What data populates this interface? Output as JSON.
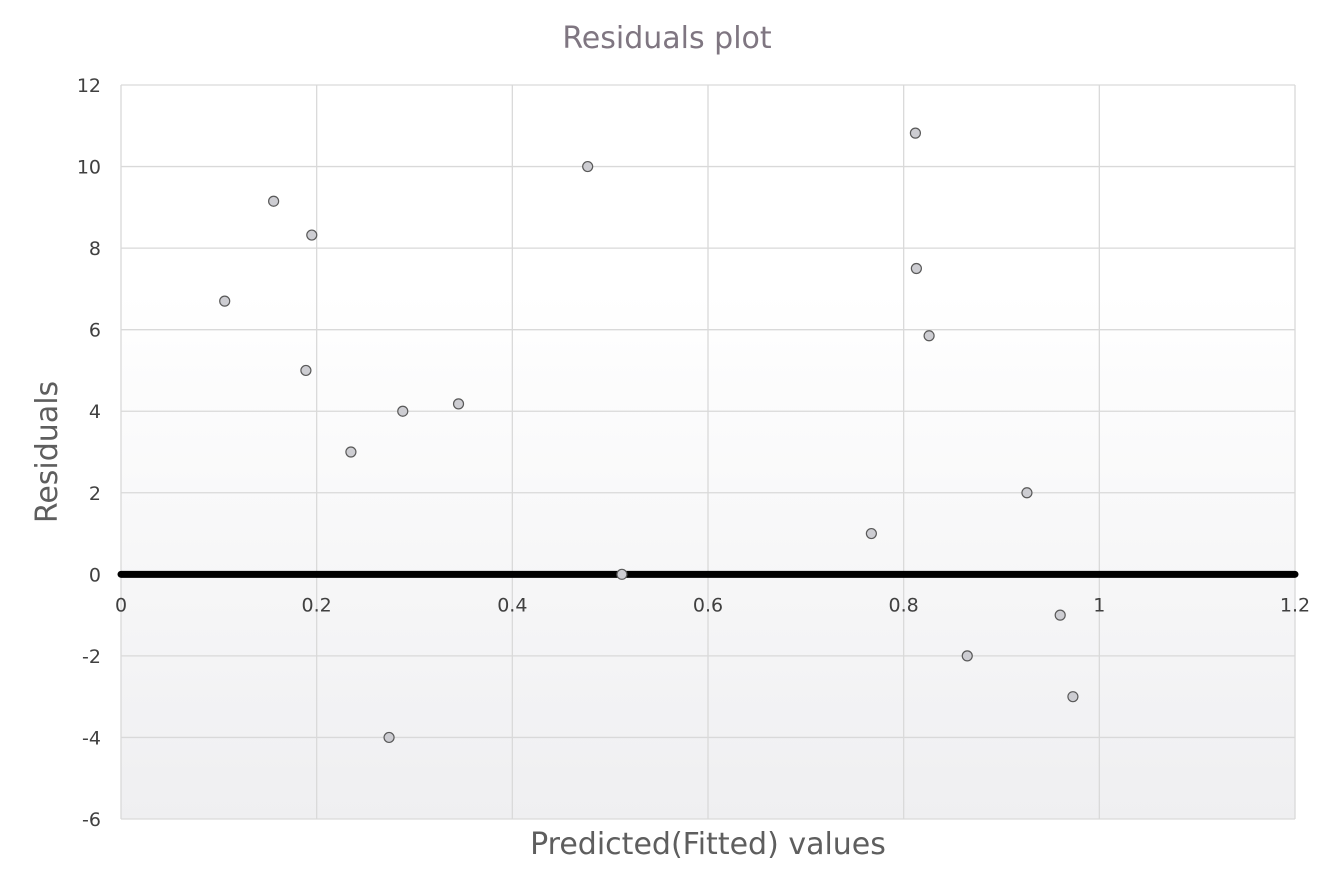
{
  "chart_data": {
    "type": "scatter",
    "title": "Residuals plot",
    "xlabel": "Predicted(Fitted) values",
    "ylabel": "Residuals",
    "xlim": [
      0,
      1.2
    ],
    "ylim": [
      -6,
      12
    ],
    "x_ticks": [
      0,
      0.2,
      0.4,
      0.6,
      0.8,
      1,
      1.2
    ],
    "x_tick_labels": [
      "0",
      "0.2",
      "0.4",
      "0.6",
      "0.8",
      "1",
      "1.2"
    ],
    "y_ticks": [
      -6,
      -4,
      -2,
      0,
      2,
      4,
      6,
      8,
      10,
      12
    ],
    "y_tick_labels": [
      "-6",
      "-4",
      "-2",
      "0",
      "2",
      "4",
      "6",
      "8",
      "10",
      "12"
    ],
    "grid": true,
    "reference_line": {
      "y": 0
    },
    "series": [
      {
        "points": [
          {
            "x": 0.106,
            "y": 6.7
          },
          {
            "x": 0.156,
            "y": 9.15
          },
          {
            "x": 0.189,
            "y": 5.0
          },
          {
            "x": 0.195,
            "y": 8.32
          },
          {
            "x": 0.235,
            "y": 3.0
          },
          {
            "x": 0.274,
            "y": -4.0
          },
          {
            "x": 0.288,
            "y": 4.0
          },
          {
            "x": 0.345,
            "y": 4.18
          },
          {
            "x": 0.477,
            "y": 10.0
          },
          {
            "x": 0.512,
            "y": 0.0
          },
          {
            "x": 0.767,
            "y": 1.0
          },
          {
            "x": 0.812,
            "y": 10.82
          },
          {
            "x": 0.813,
            "y": 7.5
          },
          {
            "x": 0.826,
            "y": 5.85
          },
          {
            "x": 0.865,
            "y": -2.0
          },
          {
            "x": 0.926,
            "y": 2.0
          },
          {
            "x": 0.96,
            "y": -1.0
          },
          {
            "x": 0.973,
            "y": -3.0
          }
        ],
        "color": "#cdcdd2"
      }
    ],
    "colors": {
      "background_top": "#ffffff",
      "background_bottom": "#efeff1",
      "grid": "#d9d9d9",
      "zero_line": "#000000",
      "marker_fill": "#cdcdd2",
      "marker_edge": "#595959",
      "title": "#7f7681",
      "axis_title": "#5e5e5e",
      "tick_label": "#404040"
    }
  }
}
